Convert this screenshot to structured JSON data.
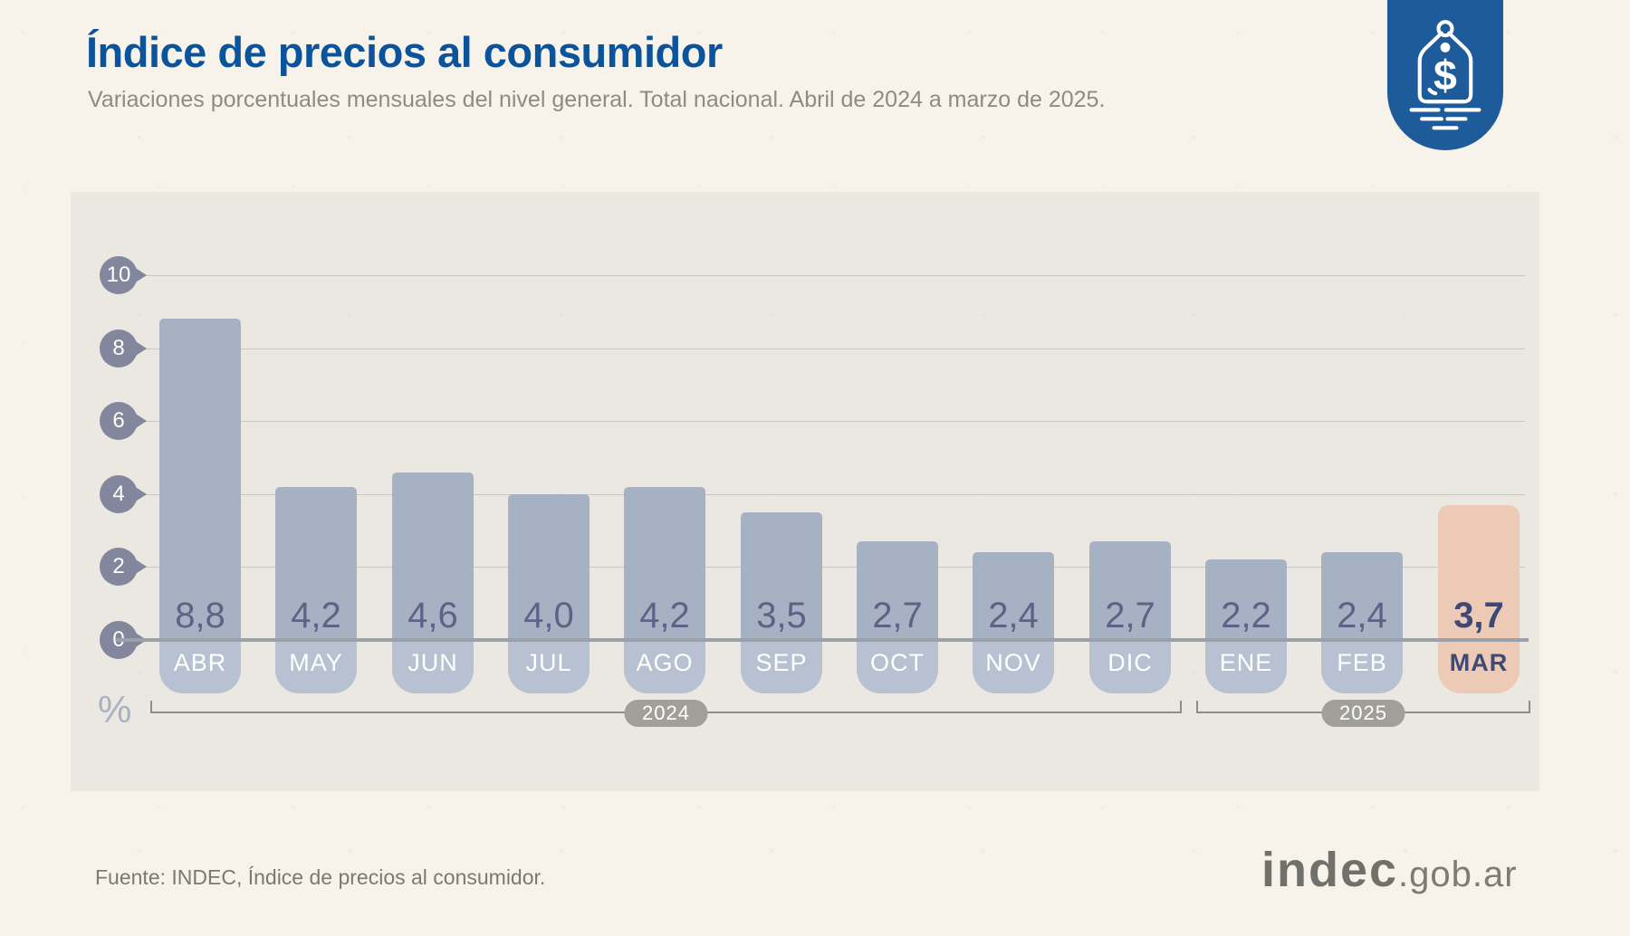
{
  "header": {
    "title": "Índice de precios al consumidor",
    "subtitle": "Variaciones porcentuales mensuales del nivel general. Total nacional. Abril de 2024 a marzo de 2025."
  },
  "badge": {
    "icon": "price-tag-icon",
    "background": "#1e5b9b"
  },
  "chart_data": {
    "type": "bar",
    "title": "Índice de precios al consumidor",
    "subtitle": "Variaciones porcentuales mensuales del nivel general. Total nacional. Abril de 2024 a marzo de 2025.",
    "unit_label": "%",
    "ylim": [
      0,
      10
    ],
    "yticks": [
      0,
      2,
      4,
      6,
      8,
      10
    ],
    "grid": true,
    "categories": [
      "ABR",
      "MAY",
      "JUN",
      "JUL",
      "AGO",
      "SEP",
      "OCT",
      "NOV",
      "DIC",
      "ENE",
      "FEB",
      "MAR"
    ],
    "values": [
      8.8,
      4.2,
      4.6,
      4.0,
      4.2,
      3.5,
      2.7,
      2.4,
      2.7,
      2.2,
      2.4,
      3.7
    ],
    "value_labels": [
      "8,8",
      "4,2",
      "4,6",
      "4,0",
      "4,2",
      "3,5",
      "2,7",
      "2,4",
      "2,7",
      "2,2",
      "2,4",
      "3,7"
    ],
    "highlight_index": 11,
    "year_groups": [
      {
        "label": "2024",
        "from": 0,
        "to": 8
      },
      {
        "label": "2025",
        "from": 9,
        "to": 11
      }
    ],
    "colors": {
      "bar": "#a7b1c4",
      "bar_highlight": "#eccab6",
      "tab": "#b7c1d2",
      "tab_highlight": "#eccab6",
      "tab_text": "#ffffff",
      "value_text": "#5b6386",
      "value_text_highlight": "#3d4a77",
      "tick_pin": "#83879e",
      "gridline": "#c8c6c0",
      "axis_line": "#9ba0a9",
      "bracket": "#8f8d88",
      "year_pill": "#a19f9a",
      "title": "#0b549c",
      "panel_background": "#f0eeea"
    }
  },
  "footer": {
    "source": "Fuente: INDEC, Índice de precios al consumidor.",
    "logo_primary": "indec",
    "logo_secondary": ".gob.ar"
  }
}
